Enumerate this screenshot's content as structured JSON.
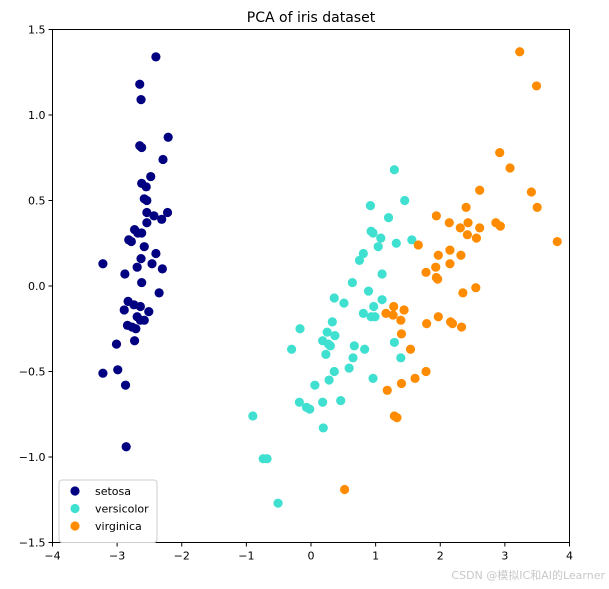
{
  "chart_data": {
    "type": "scatter",
    "title": "PCA of iris dataset",
    "xlabel": "",
    "ylabel": "",
    "xlim": [
      -4,
      4
    ],
    "ylim": [
      -1.5,
      1.5
    ],
    "xticks": [
      -4,
      -3,
      -2,
      -1,
      0,
      1,
      2,
      3,
      4
    ],
    "yticks": [
      -1.5,
      -1.0,
      -0.5,
      0.0,
      0.5,
      1.0,
      1.5
    ],
    "xtick_labels": [
      "−4",
      "−3",
      "−2",
      "−1",
      "0",
      "1",
      "2",
      "3",
      "4"
    ],
    "ytick_labels": [
      "−1.5",
      "−1.0",
      "−0.5",
      "0.0",
      "0.5",
      "1.0",
      "1.5"
    ],
    "grid": false,
    "legend_position": "lower-left",
    "series": [
      {
        "name": "setosa",
        "color": "#000080",
        "points": [
          [
            -2.4,
            1.34
          ],
          [
            -2.65,
            1.18
          ],
          [
            -2.63,
            1.09
          ],
          [
            -2.21,
            0.87
          ],
          [
            -2.29,
            0.74
          ],
          [
            -2.65,
            0.82
          ],
          [
            -2.62,
            0.81
          ],
          [
            -2.48,
            0.64
          ],
          [
            -2.62,
            0.6
          ],
          [
            -2.55,
            0.58
          ],
          [
            -2.58,
            0.51
          ],
          [
            -2.54,
            0.5
          ],
          [
            -2.54,
            0.43
          ],
          [
            -2.43,
            0.41
          ],
          [
            -2.31,
            0.39
          ],
          [
            -2.22,
            0.43
          ],
          [
            -2.54,
            0.37
          ],
          [
            -2.73,
            0.33
          ],
          [
            -2.68,
            0.31
          ],
          [
            -2.62,
            0.31
          ],
          [
            -2.82,
            0.27
          ],
          [
            -2.78,
            0.26
          ],
          [
            -2.58,
            0.23
          ],
          [
            -2.4,
            0.19
          ],
          [
            -2.63,
            0.16
          ],
          [
            -3.22,
            0.13
          ],
          [
            -2.46,
            0.13
          ],
          [
            -2.69,
            0.11
          ],
          [
            -2.3,
            0.1
          ],
          [
            -2.88,
            0.07
          ],
          [
            -2.62,
            0.02
          ],
          [
            -2.35,
            -0.04
          ],
          [
            -2.83,
            -0.09
          ],
          [
            -2.64,
            -0.12
          ],
          [
            -2.74,
            -0.11
          ],
          [
            -2.51,
            -0.15
          ],
          [
            -2.89,
            -0.14
          ],
          [
            -2.69,
            -0.18
          ],
          [
            -2.64,
            -0.2
          ],
          [
            -2.58,
            -0.2
          ],
          [
            -2.84,
            -0.23
          ],
          [
            -2.77,
            -0.24
          ],
          [
            -2.71,
            -0.25
          ],
          [
            -3.01,
            -0.34
          ],
          [
            -2.73,
            -0.32
          ],
          [
            -3.22,
            -0.51
          ],
          [
            -2.99,
            -0.49
          ],
          [
            -2.87,
            -0.58
          ],
          [
            -2.86,
            -0.94
          ]
        ]
      },
      {
        "name": "versicolor",
        "color": "#40e0d0",
        "points": [
          [
            1.29,
            0.68
          ],
          [
            0.92,
            0.47
          ],
          [
            1.45,
            0.5
          ],
          [
            1.2,
            0.4
          ],
          [
            0.93,
            0.32
          ],
          [
            0.96,
            0.31
          ],
          [
            1.08,
            0.28
          ],
          [
            1.56,
            0.27
          ],
          [
            1.32,
            0.25
          ],
          [
            1.04,
            0.23
          ],
          [
            0.81,
            0.19
          ],
          [
            0.75,
            0.15
          ],
          [
            1.1,
            0.07
          ],
          [
            0.64,
            0.02
          ],
          [
            0.36,
            -0.07
          ],
          [
            0.89,
            -0.03
          ],
          [
            0.51,
            -0.1
          ],
          [
            1.1,
            -0.08
          ],
          [
            0.97,
            -0.12
          ],
          [
            0.81,
            -0.16
          ],
          [
            0.93,
            -0.18
          ],
          [
            0.99,
            -0.18
          ],
          [
            -0.17,
            -0.25
          ],
          [
            0.33,
            -0.21
          ],
          [
            0.25,
            -0.27
          ],
          [
            0.37,
            -0.29
          ],
          [
            0.18,
            -0.32
          ],
          [
            0.27,
            -0.34
          ],
          [
            0.3,
            -0.35
          ],
          [
            0.67,
            -0.35
          ],
          [
            1.29,
            -0.33
          ],
          [
            0.83,
            -0.37
          ],
          [
            -0.3,
            -0.37
          ],
          [
            0.23,
            -0.4
          ],
          [
            0.65,
            -0.42
          ],
          [
            1.39,
            -0.42
          ],
          [
            0.59,
            -0.48
          ],
          [
            0.36,
            -0.5
          ],
          [
            0.28,
            -0.55
          ],
          [
            0.96,
            -0.54
          ],
          [
            0.06,
            -0.58
          ],
          [
            -0.18,
            -0.68
          ],
          [
            0.18,
            -0.68
          ],
          [
            0.46,
            -0.67
          ],
          [
            -0.07,
            -0.71
          ],
          [
            -0.02,
            -0.72
          ],
          [
            -0.9,
            -0.76
          ],
          [
            0.19,
            -0.83
          ],
          [
            -0.74,
            -1.01
          ],
          [
            -0.68,
            -1.01
          ],
          [
            -0.51,
            -1.27
          ]
        ]
      },
      {
        "name": "virginica",
        "color": "#ff8c00",
        "points": [
          [
            3.23,
            1.37
          ],
          [
            3.49,
            1.17
          ],
          [
            2.92,
            0.78
          ],
          [
            3.08,
            0.69
          ],
          [
            2.61,
            0.56
          ],
          [
            3.41,
            0.55
          ],
          [
            3.5,
            0.46
          ],
          [
            2.4,
            0.46
          ],
          [
            1.94,
            0.41
          ],
          [
            2.14,
            0.37
          ],
          [
            2.43,
            0.37
          ],
          [
            2.86,
            0.37
          ],
          [
            2.93,
            0.35
          ],
          [
            2.31,
            0.34
          ],
          [
            2.61,
            0.34
          ],
          [
            2.42,
            0.3
          ],
          [
            2.56,
            0.28
          ],
          [
            1.66,
            0.24
          ],
          [
            3.81,
            0.26
          ],
          [
            2.15,
            0.21
          ],
          [
            1.97,
            0.18
          ],
          [
            2.32,
            0.18
          ],
          [
            2.15,
            0.13
          ],
          [
            1.93,
            0.11
          ],
          [
            1.78,
            0.08
          ],
          [
            1.94,
            0.05
          ],
          [
            1.96,
            0.04
          ],
          [
            2.55,
            -0.01
          ],
          [
            2.35,
            -0.04
          ],
          [
            1.28,
            -0.12
          ],
          [
            1.16,
            -0.16
          ],
          [
            1.44,
            -0.14
          ],
          [
            1.27,
            -0.17
          ],
          [
            1.39,
            -0.2
          ],
          [
            1.97,
            -0.18
          ],
          [
            2.16,
            -0.21
          ],
          [
            1.79,
            -0.22
          ],
          [
            2.19,
            -0.22
          ],
          [
            2.33,
            -0.24
          ],
          [
            1.4,
            -0.28
          ],
          [
            1.54,
            -0.37
          ],
          [
            1.78,
            -0.5
          ],
          [
            1.61,
            -0.54
          ],
          [
            1.4,
            -0.57
          ],
          [
            1.18,
            -0.61
          ],
          [
            1.29,
            -0.76
          ],
          [
            1.33,
            -0.77
          ],
          [
            0.52,
            -1.19
          ]
        ]
      }
    ]
  },
  "watermark": "CSDN @模拟IC和AI的Learner"
}
